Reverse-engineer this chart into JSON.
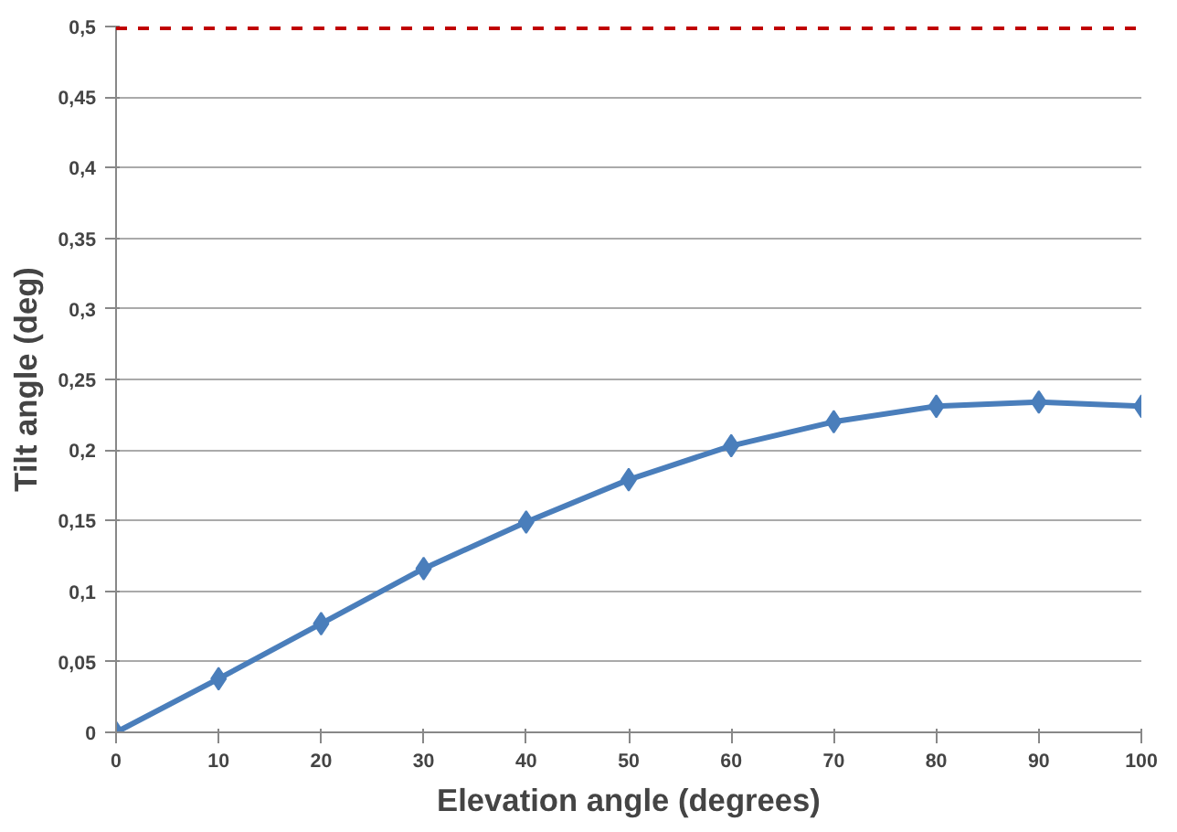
{
  "chart_data": {
    "type": "line",
    "xlabel": "Elevation angle (degrees)",
    "ylabel": "Tilt angle (deg)",
    "x": [
      0,
      10,
      20,
      30,
      40,
      50,
      60,
      70,
      80,
      90,
      100
    ],
    "series": [
      {
        "color": "#4a7ebb",
        "values": [
          0,
          0.038,
          0.077,
          0.116,
          0.149,
          0.179,
          0.203,
          0.22,
          0.231,
          0.234,
          0.231
        ]
      }
    ],
    "xlim": [
      0,
      100
    ],
    "xticks": [
      0,
      10,
      20,
      30,
      40,
      50,
      60,
      70,
      80,
      90,
      100
    ],
    "ylim": [
      0,
      0.5
    ],
    "yticks": [
      0,
      {
        "value": 0.05,
        "label": "0,05"
      },
      {
        "value": 0.1,
        "label": "0,1"
      },
      {
        "value": 0.15,
        "label": "0,15"
      },
      {
        "value": 0.2,
        "label": "0,2"
      },
      {
        "value": 0.25,
        "label": "0,25"
      },
      {
        "value": 0.3,
        "label": "0,3"
      },
      {
        "value": 0.35,
        "label": "0,35"
      },
      {
        "value": 0.4,
        "label": "0,4"
      },
      {
        "value": 0.45,
        "label": "0,45"
      },
      {
        "value": 0.5,
        "label": "0,5"
      }
    ],
    "ref_lines": [
      {
        "axis": "y",
        "value": 0.5,
        "color": "#c00000",
        "line_style": "dashed"
      }
    ],
    "grid": "y",
    "marker": "diamond",
    "line_style": "solid"
  }
}
